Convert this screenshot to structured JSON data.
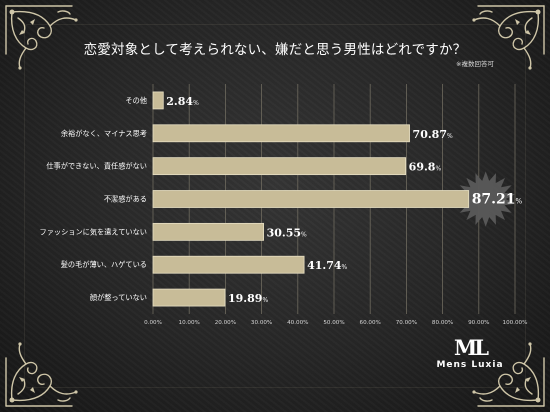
{
  "chart_data": {
    "type": "bar",
    "orientation": "horizontal",
    "title": "恋愛対象として考えられない、嫌だと思う男性はどれですか？",
    "note": "※複数回答可",
    "categories": [
      "その他",
      "余裕がなく、マイナス思考",
      "仕事ができない、責任感がない",
      "不潔感がある",
      "ファッションに気を遣えていない",
      "髪の毛が薄い、ハゲている",
      "顔が整っていない"
    ],
    "values": [
      2.84,
      70.87,
      69.8,
      87.21,
      30.55,
      41.74,
      19.89
    ],
    "value_labels": [
      "2.84",
      "70.87",
      "69.8",
      "87.21",
      "30.55",
      "41.74",
      "19.89"
    ],
    "value_suffix": "%",
    "highlight_index": 3,
    "xlim": [
      0,
      100
    ],
    "xticks": [
      "0.00%",
      "10.00%",
      "20.00%",
      "30.00%",
      "40.00%",
      "50.00%",
      "60.00%",
      "70.00%",
      "80.00%",
      "90.00%",
      "100.00%"
    ],
    "grid": true,
    "colors": {
      "bar": "#c8bc98",
      "bar_border": "#e8e0c4",
      "grid": "#6e6a5e",
      "text": "#ffffff",
      "highlight_burst": "#5a5a5a",
      "background": "#2b2b2b"
    }
  },
  "brand": {
    "mark": "ML",
    "name": "Mens Luxia"
  }
}
